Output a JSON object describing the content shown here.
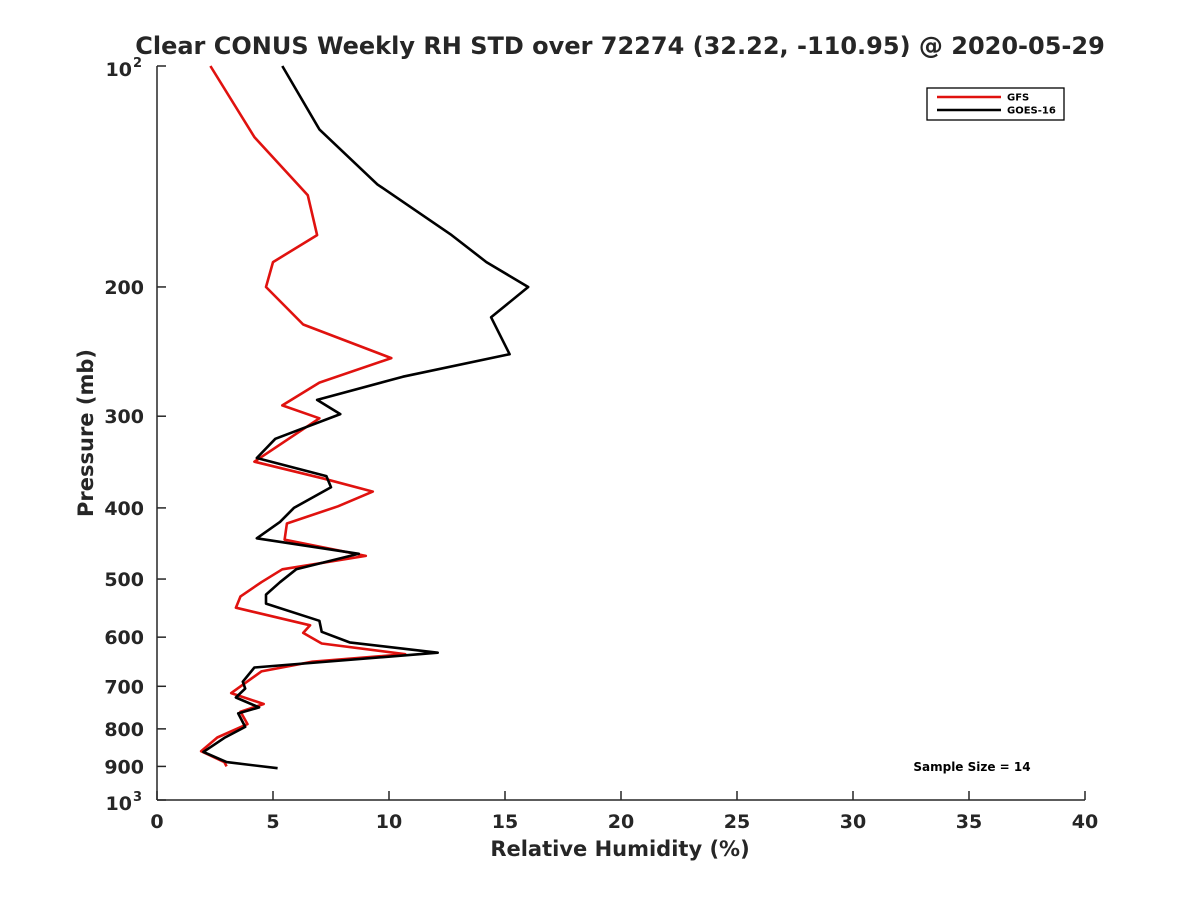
{
  "chart_data": {
    "type": "line",
    "title": "Clear CONUS Weekly RH STD over 72274 (32.22, -110.95) @ 2020-05-29",
    "xlabel": "Relative Humidity (%)",
    "ylabel": "Pressure (mb)",
    "xlim": [
      0,
      40
    ],
    "ylim": [
      100,
      1000
    ],
    "y_scale": "log",
    "y_reversed": true,
    "grid": false,
    "legend_position": "top-right",
    "x_ticks": [
      "0",
      "5",
      "10",
      "15",
      "20",
      "25",
      "30",
      "35",
      "40"
    ],
    "y_ticks": [
      {
        "value": 100,
        "base": "10",
        "exp": "2"
      },
      {
        "value": 200,
        "label": "200"
      },
      {
        "value": 300,
        "label": "300"
      },
      {
        "value": 400,
        "label": "400"
      },
      {
        "value": 500,
        "label": "500"
      },
      {
        "value": 600,
        "label": "600"
      },
      {
        "value": 700,
        "label": "700"
      },
      {
        "value": 800,
        "label": "800"
      },
      {
        "value": 900,
        "label": "900"
      },
      {
        "value": 1000,
        "base": "10",
        "exp": "3"
      }
    ],
    "series": [
      {
        "name": "GFS",
        "color": "#e0120f",
        "points": [
          [
            2.3,
            100
          ],
          [
            4.2,
            125
          ],
          [
            6.5,
            150
          ],
          [
            6.9,
            170
          ],
          [
            5.0,
            185
          ],
          [
            4.7,
            200
          ],
          [
            6.3,
            225
          ],
          [
            10.1,
            250
          ],
          [
            7.0,
            270
          ],
          [
            5.4,
            290
          ],
          [
            7.0,
            302
          ],
          [
            4.2,
            346
          ],
          [
            7.2,
            365
          ],
          [
            9.3,
            380
          ],
          [
            7.8,
            398
          ],
          [
            5.6,
            420
          ],
          [
            5.5,
            442
          ],
          [
            9.0,
            465
          ],
          [
            5.4,
            485
          ],
          [
            4.5,
            505
          ],
          [
            3.6,
            528
          ],
          [
            3.4,
            547
          ],
          [
            6.6,
            578
          ],
          [
            6.3,
            592
          ],
          [
            7.1,
            612
          ],
          [
            10.7,
            633
          ],
          [
            6.7,
            648
          ],
          [
            4.5,
            668
          ],
          [
            3.2,
            715
          ],
          [
            4.6,
            740
          ],
          [
            3.6,
            758
          ],
          [
            3.9,
            788
          ],
          [
            2.6,
            822
          ],
          [
            1.9,
            858
          ],
          [
            2.9,
            888
          ],
          [
            3.0,
            900
          ]
        ]
      },
      {
        "name": "GOES-16",
        "color": "#000000",
        "points": [
          [
            5.4,
            100
          ],
          [
            7.0,
            122
          ],
          [
            9.5,
            145
          ],
          [
            12.7,
            170
          ],
          [
            14.2,
            185
          ],
          [
            16.0,
            200
          ],
          [
            14.4,
            220
          ],
          [
            15.2,
            247
          ],
          [
            10.6,
            265
          ],
          [
            6.9,
            285
          ],
          [
            7.9,
            298
          ],
          [
            5.1,
            322
          ],
          [
            4.3,
            342
          ],
          [
            7.3,
            362
          ],
          [
            7.5,
            375
          ],
          [
            5.9,
            400
          ],
          [
            5.3,
            418
          ],
          [
            4.3,
            440
          ],
          [
            8.7,
            462
          ],
          [
            6.0,
            485
          ],
          [
            5.3,
            505
          ],
          [
            4.7,
            525
          ],
          [
            4.7,
            540
          ],
          [
            7.0,
            570
          ],
          [
            7.1,
            590
          ],
          [
            8.3,
            610
          ],
          [
            12.1,
            630
          ],
          [
            4.2,
            660
          ],
          [
            3.7,
            690
          ],
          [
            3.8,
            705
          ],
          [
            3.4,
            725
          ],
          [
            4.4,
            748
          ],
          [
            3.5,
            762
          ],
          [
            3.8,
            795
          ],
          [
            2.9,
            823
          ],
          [
            2.0,
            860
          ],
          [
            3.0,
            888
          ],
          [
            5.2,
            905
          ]
        ]
      }
    ],
    "legend": [
      "GFS",
      "GOES-16"
    ],
    "annotation": "Sample Size = 14"
  }
}
